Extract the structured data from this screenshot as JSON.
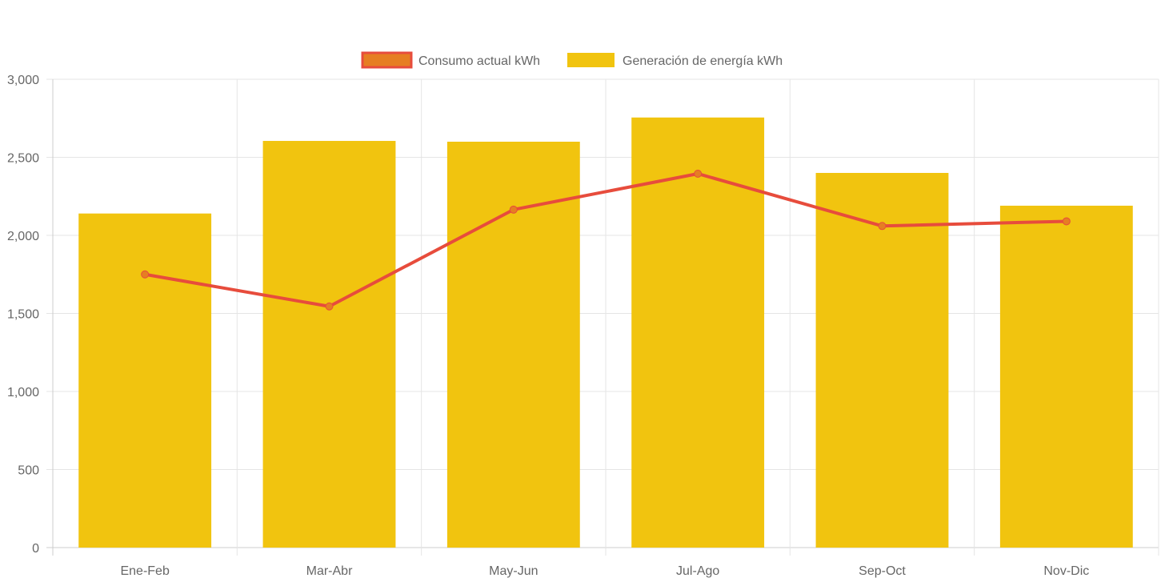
{
  "chart_data": {
    "type": "bar",
    "categories": [
      "Ene-Feb",
      "Mar-Abr",
      "May-Jun",
      "Jul-Ago",
      "Sep-Oct",
      "Nov-Dic"
    ],
    "series": [
      {
        "name": "Consumo actual kWh",
        "type": "line",
        "values": [
          1750,
          1545,
          2165,
          2395,
          2060,
          2090
        ],
        "color": "#e74c3c",
        "point_color": "#e67e22"
      },
      {
        "name": "Generación de energía kWh",
        "type": "bar",
        "values": [
          2140,
          2605,
          2600,
          2755,
          2400,
          2190
        ],
        "color": "#f1c40f"
      }
    ],
    "ylim": [
      0,
      3000
    ],
    "yticks": [
      0,
      500,
      1000,
      1500,
      2000,
      2500,
      3000
    ],
    "ytick_labels": [
      "0",
      "500",
      "1,000",
      "1,500",
      "2,000",
      "2,500",
      "3,000"
    ],
    "grid": true,
    "legend_position": "top"
  }
}
